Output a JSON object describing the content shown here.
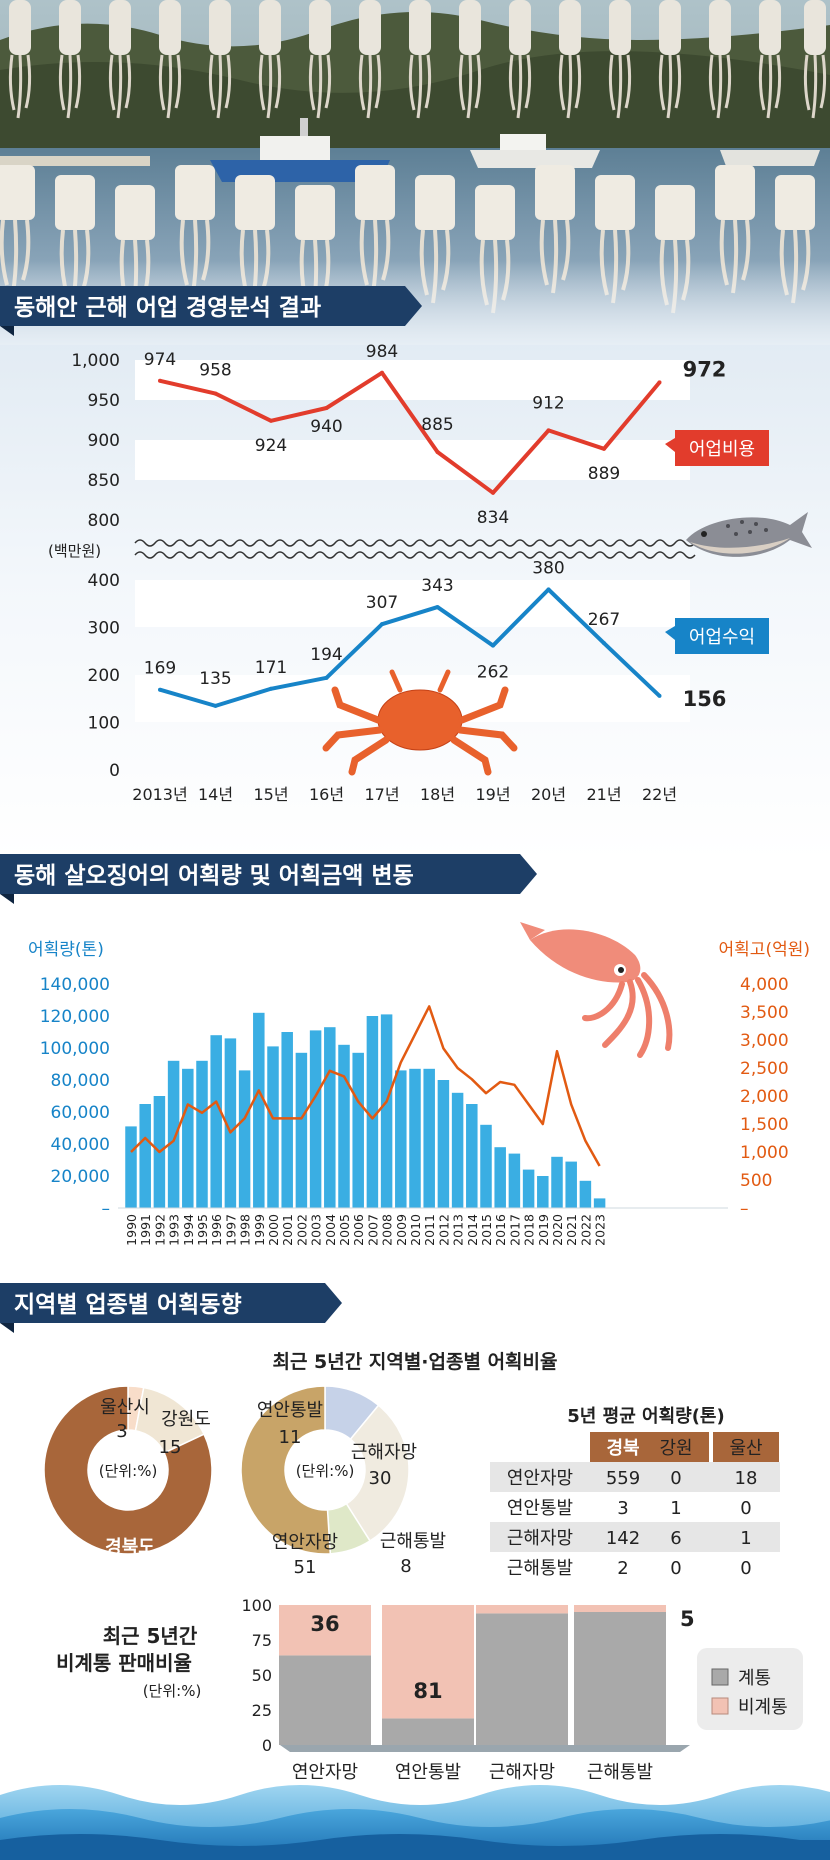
{
  "sections": {
    "s1_title": "동해안 근해 어업 경영분석 결과",
    "s2_title": "동해 살오징어의 어획량 및 어획금액 변동",
    "s3_title": "지역별 업종별 어획동향"
  },
  "colors": {
    "navy": "#1d3e66",
    "red": "#e23c2c",
    "blue": "#1784c8",
    "orange": "#e25a12",
    "bar_blue": "#3aaee3",
    "brown": "#a8663a",
    "tan": "#c8a468",
    "grey": "#a9a9a9",
    "pink": "#f2c2b4"
  },
  "chart_data": [
    {
      "type": "line",
      "x": [
        "2013년",
        "14년",
        "15년",
        "16년",
        "17년",
        "18년",
        "19년",
        "20년",
        "21년",
        "22년"
      ],
      "unit_label": "(백만원)",
      "y_ticks_upper": [
        "1,000",
        "950",
        "900",
        "850",
        "800"
      ],
      "y_ticks_lower": [
        "400",
        "300",
        "200",
        "100",
        "0"
      ],
      "ylim_upper": [
        800,
        1000
      ],
      "ylim_lower": [
        0,
        400
      ],
      "series": [
        {
          "name": "어업비용",
          "color": "#e23c2c",
          "values": [
            974,
            958,
            924,
            940,
            984,
            885,
            834,
            912,
            889,
            972
          ],
          "labels": [
            "974",
            "958",
            "924",
            "940",
            "984",
            "885",
            "834",
            "912",
            "889",
            "972"
          ]
        },
        {
          "name": "어업수익",
          "color": "#1784c8",
          "values": [
            169,
            135,
            171,
            194,
            307,
            343,
            262,
            380,
            267,
            156
          ],
          "labels": [
            "169",
            "135",
            "171",
            "194",
            "307",
            "343",
            "262",
            "380",
            "267",
            "156"
          ]
        }
      ]
    },
    {
      "type": "bar",
      "categories": [
        "1990",
        "1991",
        "1992",
        "1993",
        "1994",
        "1995",
        "1996",
        "1997",
        "1998",
        "1999",
        "2000",
        "2001",
        "2002",
        "2003",
        "2004",
        "2005",
        "2006",
        "2007",
        "2008",
        "2009",
        "2010",
        "2011",
        "2012",
        "2013",
        "2014",
        "2015",
        "2016",
        "2017",
        "2018",
        "2019",
        "2020",
        "2021",
        "2022",
        "2023"
      ],
      "left_axis_label": "어획량(톤)",
      "right_axis_label": "어획고(억원)",
      "left_ticks": [
        "140,000",
        "120,000",
        "100,000",
        "80,000",
        "60,000",
        "40,000",
        "20,000",
        "–"
      ],
      "right_ticks": [
        "4,000",
        "3,500",
        "3,000",
        "2,500",
        "2,000",
        "1,500",
        "1,000",
        "500",
        "–"
      ],
      "ylim_left": [
        0,
        140000
      ],
      "ylim_right": [
        0,
        4000
      ],
      "catch_tons": [
        51000,
        65000,
        70000,
        92000,
        87000,
        92000,
        108000,
        106000,
        86000,
        122000,
        101000,
        110000,
        97000,
        111000,
        113000,
        102000,
        97000,
        120000,
        121000,
        86000,
        87000,
        87000,
        80000,
        72000,
        65000,
        52000,
        38000,
        34000,
        24000,
        20000,
        32000,
        29000,
        17000,
        6000
      ],
      "value_eok": [
        1000,
        1250,
        1000,
        1200,
        1850,
        1700,
        1900,
        1350,
        1600,
        2100,
        1600,
        1600,
        1600,
        2000,
        2450,
        2350,
        1900,
        1600,
        1900,
        2600,
        3100,
        3600,
        2850,
        2500,
        2300,
        2050,
        2250,
        2200,
        1850,
        1500,
        2800,
        1850,
        1200,
        750
      ]
    },
    {
      "type": "pie",
      "title": "최근 5년간 지역별·업종별 어획비율",
      "center_label": "(단위:%)",
      "slices": [
        {
          "label": "울산시",
          "value": 3,
          "value_label": "3",
          "color": "#f8ddc9"
        },
        {
          "label": "강원도",
          "value": 15,
          "value_label": "15",
          "color": "#f0e6d4"
        },
        {
          "label": "경북도",
          "value": 82,
          "value_label": "82",
          "color": "#a8663a"
        }
      ]
    },
    {
      "type": "pie",
      "center_label": "(단위:%)",
      "slices": [
        {
          "label": "연안통발",
          "value": 11,
          "value_label": "11",
          "color": "#c6d2e8"
        },
        {
          "label": "근해자망",
          "value": 30,
          "value_label": "30",
          "color": "#f0ebe0"
        },
        {
          "label": "근해통발",
          "value": 8,
          "value_label": "8",
          "color": "#dfe8c8"
        },
        {
          "label": "연안자망",
          "value": 51,
          "value_label": "51",
          "color": "#c8a468"
        }
      ]
    },
    {
      "type": "table",
      "title": "5년 평균 어획량(톤)",
      "columns": [
        "경북",
        "강원",
        "울산"
      ],
      "rows": [
        {
          "label": "연안자망",
          "cells": [
            "559",
            "0",
            "18"
          ]
        },
        {
          "label": "연안통발",
          "cells": [
            "3",
            "1",
            "0"
          ]
        },
        {
          "label": "근해자망",
          "cells": [
            "142",
            "6",
            "1"
          ]
        },
        {
          "label": "근해통발",
          "cells": [
            "2",
            "0",
            "0"
          ]
        }
      ]
    },
    {
      "type": "bar",
      "title_lines": [
        "최근 5년간",
        "비계통 판매비율"
      ],
      "unit": "(단위:%)",
      "categories": [
        "연안자망",
        "연안통발",
        "근해자망",
        "근해통발"
      ],
      "y_ticks": [
        "100",
        "75",
        "50",
        "25",
        "0"
      ],
      "ylim": [
        0,
        100
      ],
      "series": [
        {
          "name": "계통",
          "values": [
            64,
            19,
            94,
            95
          ],
          "color": "#a9a9a9"
        },
        {
          "name": "비계통",
          "values": [
            36,
            81,
            6,
            5
          ],
          "labels": [
            "36",
            "81",
            "6",
            "5"
          ],
          "color": "#f2c2b4"
        }
      ]
    }
  ]
}
